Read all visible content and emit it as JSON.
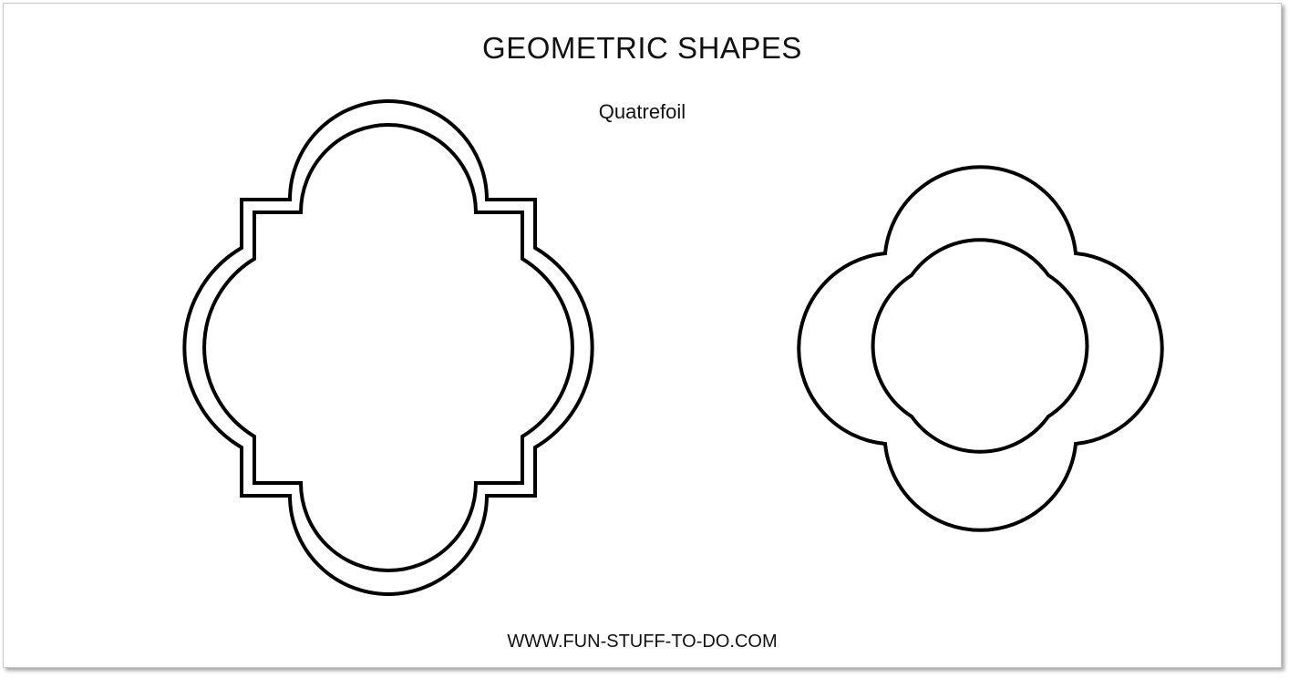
{
  "header": {
    "title": "GEOMETRIC SHAPES",
    "subtitle": "Quatrefoil"
  },
  "footer": {
    "website": "WWW.FUN-STUFF-TO-DO.COM"
  },
  "shapes": [
    {
      "kind": "quatrefoil-with-square-corners",
      "style": "double-outline"
    },
    {
      "kind": "quatrefoil-four-circles",
      "style": "double-outline"
    }
  ],
  "colors": {
    "outline": "#000000",
    "background": "#ffffff"
  }
}
